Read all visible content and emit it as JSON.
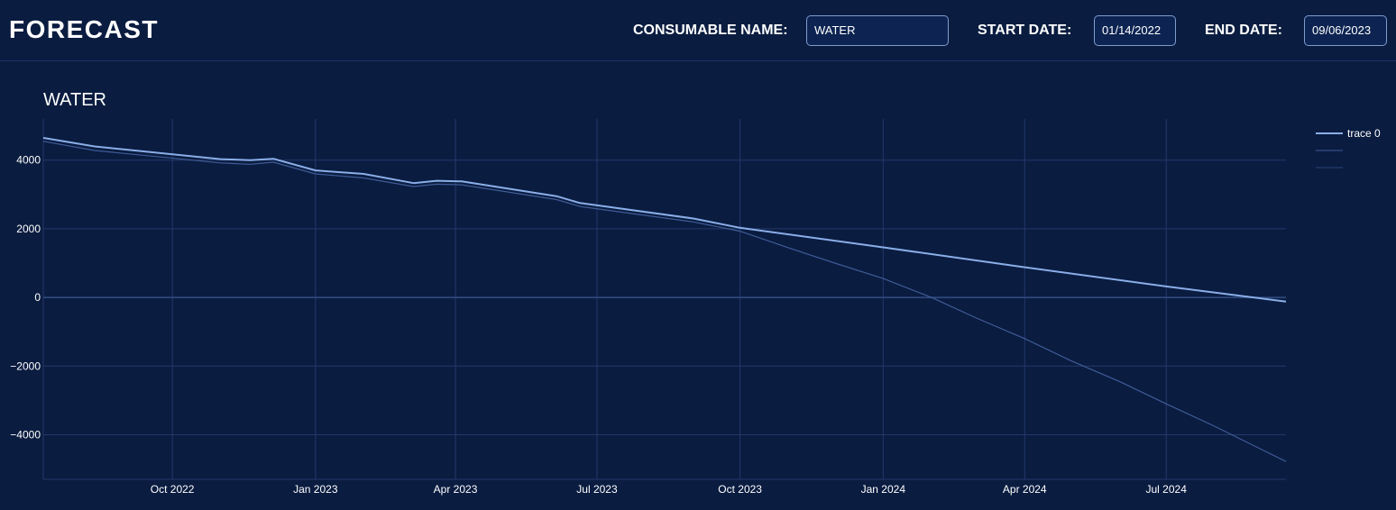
{
  "header": {
    "title": "FORECAST",
    "consumable_label": "CONSUMABLE NAME:",
    "consumable_value": "WATER",
    "start_label": "START DATE:",
    "start_value": "01/14/2022",
    "end_label": "END DATE:",
    "end_value": "09/06/2023"
  },
  "colors": {
    "background": "#0a1c40",
    "grid": "#24396a",
    "zero_line": "#4a6aa8",
    "trace0": "#8aaee8",
    "trace_secondary": "#3f5c96"
  },
  "chart_data": {
    "type": "line",
    "title": "WATER",
    "xlabel": "",
    "ylabel": "",
    "xlim": [
      "2022-07-10",
      "2024-09-16"
    ],
    "ylim": [
      -5300,
      5200
    ],
    "x_ticks": [
      "2022-10-01",
      "2023-01-01",
      "2023-04-01",
      "2023-07-01",
      "2023-10-01",
      "2024-01-01",
      "2024-04-01",
      "2024-07-01"
    ],
    "x_tick_labels": [
      "Oct 2022",
      "Jan 2023",
      "Apr 2023",
      "Jul 2023",
      "Oct 2023",
      "Jan 2024",
      "Apr 2024",
      "Jul 2024"
    ],
    "y_ticks": [
      4000,
      2000,
      0,
      -2000,
      -4000
    ],
    "y_tick_labels": [
      "4000",
      "2000",
      "0",
      "−2000",
      "−4000"
    ],
    "grid": true,
    "legend": "top-right",
    "series": [
      {
        "name": "trace 0",
        "color": "#8aaee8",
        "x": [
          "2022-07-10",
          "2022-08-12",
          "2022-11-01",
          "2022-11-20",
          "2022-12-05",
          "2023-01-01",
          "2023-02-01",
          "2023-03-05",
          "2023-03-20",
          "2023-04-05",
          "2023-06-05",
          "2023-06-20",
          "2023-09-01",
          "2023-10-01",
          "2024-01-01",
          "2024-04-01",
          "2024-07-01",
          "2024-09-16"
        ],
        "y": [
          4650,
          4400,
          4030,
          4000,
          4040,
          3700,
          3600,
          3330,
          3400,
          3380,
          2950,
          2750,
          2300,
          2030,
          1460,
          880,
          320,
          -120
        ]
      },
      {
        "name": "",
        "color": "#3f5c96",
        "x": [
          "2022-07-10",
          "2022-08-12",
          "2022-11-01",
          "2022-11-20",
          "2022-12-05",
          "2023-01-01",
          "2023-02-01",
          "2023-03-05",
          "2023-03-20",
          "2023-04-05",
          "2023-06-05",
          "2023-06-20",
          "2023-09-01",
          "2023-10-01",
          "2023-11-01",
          "2023-12-01",
          "2024-01-01",
          "2024-02-01",
          "2024-03-01",
          "2024-04-01",
          "2024-05-01",
          "2024-06-01",
          "2024-07-01",
          "2024-08-01",
          "2024-09-16"
        ],
        "y": [
          4550,
          4280,
          3920,
          3880,
          3940,
          3600,
          3480,
          3230,
          3300,
          3280,
          2850,
          2650,
          2200,
          1930,
          1450,
          1000,
          550,
          0,
          -600,
          -1200,
          -1850,
          -2450,
          -3100,
          -3750,
          -4780
        ]
      },
      {
        "name": "",
        "color": "#2a4478",
        "x": [
          "2022-07-10",
          "2024-09-16"
        ],
        "y": [
          0,
          0
        ]
      }
    ]
  }
}
